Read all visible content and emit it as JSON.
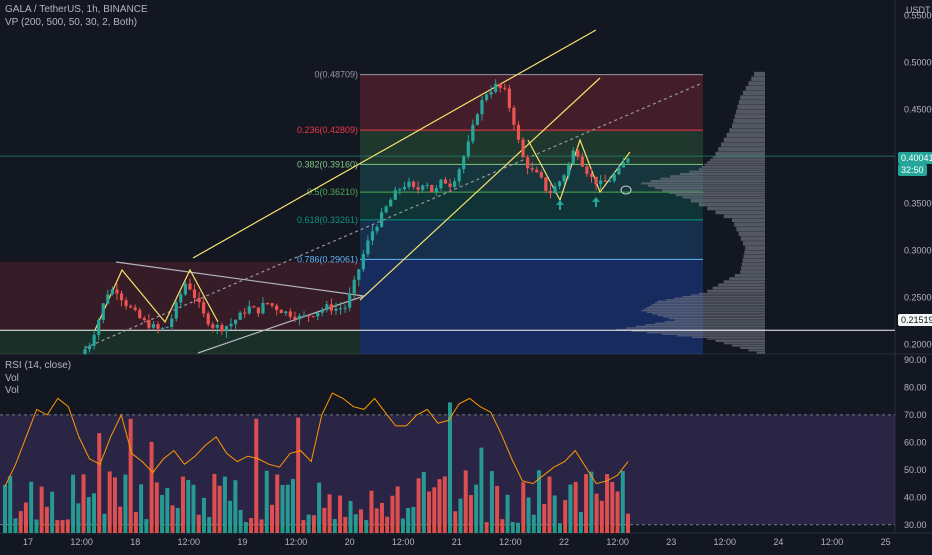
{
  "header": {
    "symbol_line": "GALA / TetherUS, 1h, BINANCE",
    "vp_line": "VP (200, 500, 50, 30, 2, Both)",
    "currency": "USDT"
  },
  "indicator": {
    "rsi_line": "RSI (14, close)",
    "vol_line_1": "Vol",
    "vol_line_2": "Vol"
  },
  "price_axis": {
    "ticks": [
      "0.55000",
      "0.50000",
      "0.45000",
      "0.40000",
      "0.35000",
      "0.30000",
      "0.25000",
      "0.20000"
    ],
    "current_price": "0.40041",
    "countdown": "32:50",
    "marked_price": "0.21519"
  },
  "rsi_axis": {
    "ticks": [
      "90.00",
      "80.00",
      "70.00",
      "60.00",
      "50.00",
      "40.00",
      "30.00"
    ]
  },
  "time_axis": {
    "ticks": [
      "17",
      "12:00",
      "18",
      "12:00",
      "19",
      "12:00",
      "20",
      "12:00",
      "21",
      "12:00",
      "22",
      "12:00",
      "23",
      "12:00",
      "24",
      "12:00",
      "25"
    ]
  },
  "fib_levels": [
    {
      "label": "0(0.48709)",
      "value": 0.48709,
      "color": "#9598a1"
    },
    {
      "label": "0.236(0.42809)",
      "value": 0.42809,
      "color": "#f23645"
    },
    {
      "label": "0.382(0.39160)",
      "value": 0.3916,
      "color": "#81c784"
    },
    {
      "label": "0.5(0.36210)",
      "value": 0.3621,
      "color": "#4caf50"
    },
    {
      "label": "0.618(0.33261)",
      "value": 0.33261,
      "color": "#089981"
    },
    {
      "label": "0.786(0.29061)",
      "value": 0.29061,
      "color": "#64b5f6"
    }
  ],
  "colors": {
    "up": "#26a69a",
    "down": "#ef5350",
    "trendline": "#f5e26b",
    "rsi": "#ff9800",
    "rsi_band": "#7e57c2"
  },
  "chart_data": {
    "type": "candlestick",
    "price_ylim": [
      0.19,
      0.56
    ],
    "rsi_ylim": [
      27,
      90
    ],
    "rsi_band": [
      30,
      70
    ],
    "price_path": [
      0.19,
      0.2,
      0.225,
      0.255,
      0.26,
      0.245,
      0.235,
      0.225,
      0.22,
      0.215,
      0.22,
      0.245,
      0.268,
      0.25,
      0.23,
      0.22,
      0.218,
      0.222,
      0.23,
      0.24,
      0.235,
      0.245,
      0.24,
      0.235,
      0.232,
      0.228,
      0.232,
      0.236,
      0.24,
      0.238,
      0.24,
      0.265,
      0.295,
      0.32,
      0.335,
      0.352,
      0.365,
      0.372,
      0.362,
      0.376,
      0.36,
      0.375,
      0.37,
      0.39,
      0.415,
      0.45,
      0.468,
      0.475,
      0.47,
      0.44,
      0.4,
      0.385,
      0.378,
      0.36,
      0.37,
      0.385,
      0.41,
      0.39,
      0.375,
      0.37,
      0.376,
      0.385,
      0.4
    ],
    "rsi_values": [
      44,
      52,
      62,
      72,
      70,
      76,
      73,
      62,
      54,
      52,
      62,
      70,
      56,
      53,
      49,
      54,
      57,
      52,
      55,
      59,
      62,
      56,
      53,
      55,
      54,
      52,
      51,
      56,
      57,
      53,
      70,
      78,
      76,
      73,
      72,
      76,
      71,
      66,
      66,
      70,
      72,
      67,
      68,
      74,
      76,
      73,
      71,
      63,
      54,
      46,
      45,
      48,
      51,
      53,
      57,
      51,
      45,
      46,
      48,
      53
    ]
  }
}
